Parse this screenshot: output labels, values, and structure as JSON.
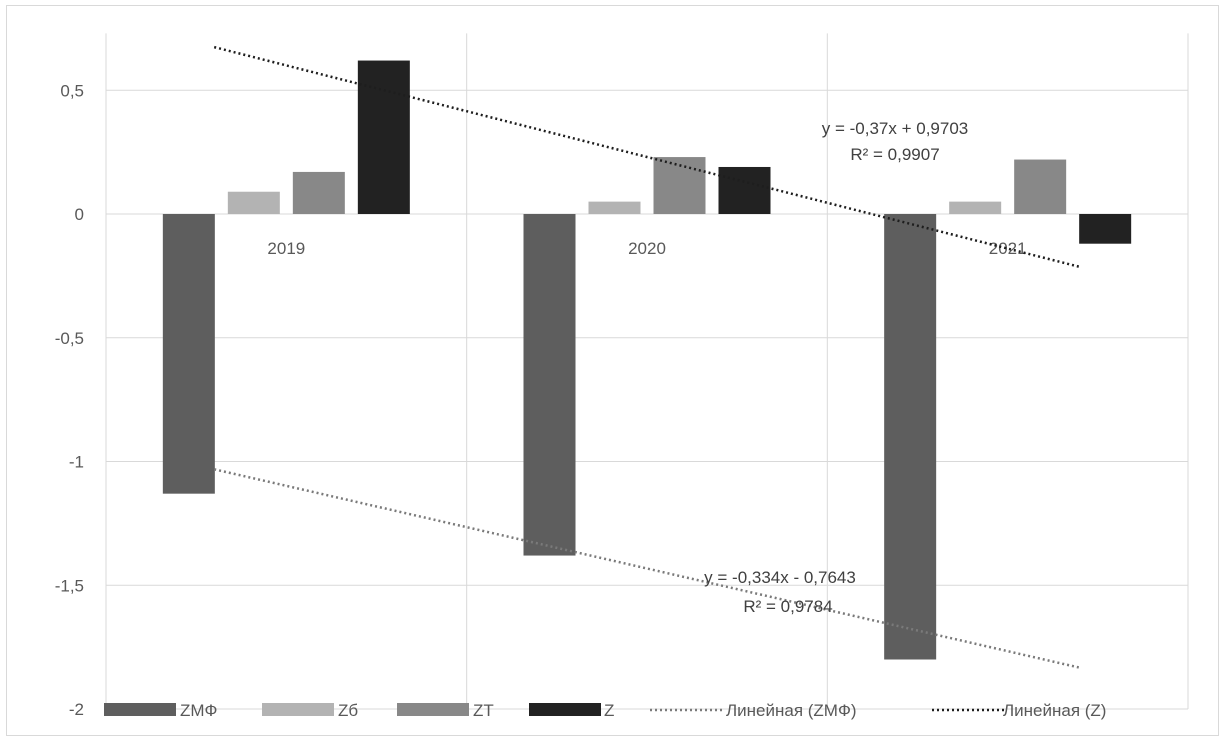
{
  "chart_data": {
    "type": "bar",
    "title": "",
    "xlabel": "",
    "ylabel": "",
    "categories": [
      "2019",
      "2020",
      "2021"
    ],
    "ylim": [
      -2,
      0.75
    ],
    "yticks": [
      0.5,
      0,
      -0.5,
      -1,
      -1.5,
      -2
    ],
    "ytick_labels": [
      "0,5",
      "0",
      "-0,5",
      "-1",
      "-1,5",
      "-2"
    ],
    "grid": "horizontal and vertical",
    "legend_position": "bottom",
    "series": [
      {
        "name": "ZMФ",
        "values": [
          -1.13,
          -1.38,
          -1.8
        ],
        "color": "#5e5e5e"
      },
      {
        "name": "Zб",
        "values": [
          0.09,
          0.05,
          0.05
        ],
        "color": "#b3b3b3"
      },
      {
        "name": "ZT",
        "values": [
          0.17,
          0.23,
          0.22
        ],
        "color": "#888888"
      },
      {
        "name": "Z",
        "values": [
          0.62,
          0.19,
          -0.12
        ],
        "color": "#222222"
      }
    ],
    "trendlines": [
      {
        "name": "Линейная (ZMФ)",
        "series": "ZMФ",
        "slope": -0.334,
        "intercept": -0.7643,
        "equation": "y = -0,334x - 0,7643",
        "r2": "R² = 0,9784",
        "color": "#7a7a7a"
      },
      {
        "name": "Линейная (Z)",
        "series": "Z",
        "slope": -0.37,
        "intercept": 0.9703,
        "equation": "y = -0,37x + 0,9703",
        "r2": "R² = 0,9907",
        "color": "#1e1e1e"
      }
    ]
  }
}
